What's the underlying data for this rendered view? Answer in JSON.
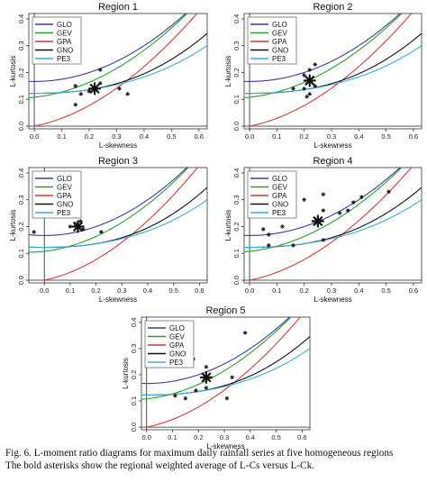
{
  "chart_data": [
    {
      "type": "scatter",
      "title": "Region 1",
      "xlabel": "L-skewness",
      "ylabel": "L-kurtosis",
      "xlim": [
        -0.02,
        0.63
      ],
      "ylim": [
        -0.01,
        0.42
      ],
      "xticks": [
        0.0,
        0.1,
        0.2,
        0.3,
        0.4,
        0.5,
        0.6
      ],
      "yticks": [
        0.0,
        0.1,
        0.2,
        0.3,
        0.4
      ],
      "xtick_labels": [
        "0.0",
        "0.1",
        "0.2",
        "0.3",
        "0.4",
        "0.5",
        "0.6"
      ],
      "ytick_labels": [
        "0.0",
        "0.1",
        "0.2",
        "0.3",
        "0.4"
      ],
      "legend": [
        "GLO",
        "GEV",
        "GPA",
        "GNO",
        "PE3"
      ],
      "legend_position": "top-left",
      "points": [
        [
          0.15,
          0.15
        ],
        [
          0.17,
          0.12
        ],
        [
          0.24,
          0.21
        ],
        [
          0.24,
          0.16
        ],
        [
          0.31,
          0.14
        ],
        [
          0.34,
          0.12
        ],
        [
          0.15,
          0.08
        ],
        [
          0.2,
          0.13
        ]
      ],
      "regional_average": [
        0.22,
        0.14
      ]
    },
    {
      "type": "scatter",
      "title": "Region 2",
      "xlabel": "L-skewness",
      "ylabel": "L-kurtosis",
      "xlim": [
        -0.02,
        0.63
      ],
      "ylim": [
        -0.01,
        0.42
      ],
      "xticks": [
        0.0,
        0.1,
        0.2,
        0.3,
        0.4,
        0.5,
        0.6
      ],
      "yticks": [
        0.0,
        0.1,
        0.2,
        0.3,
        0.4
      ],
      "xtick_labels": [
        "0.0",
        "0.1",
        "0.2",
        "0.3",
        "0.4",
        "0.5",
        "0.6"
      ],
      "ytick_labels": [
        "0.0",
        "0.1",
        "0.2",
        "0.3",
        "0.4"
      ],
      "legend": [
        "GLO",
        "GEV",
        "GPA",
        "GNO",
        "PE3"
      ],
      "legend_position": "top-left",
      "points": [
        [
          0.16,
          0.14
        ],
        [
          0.2,
          0.14
        ],
        [
          0.22,
          0.21
        ],
        [
          0.24,
          0.23
        ],
        [
          0.2,
          0.19
        ],
        [
          0.22,
          0.12
        ],
        [
          0.24,
          0.15
        ],
        [
          0.21,
          0.11
        ]
      ],
      "regional_average": [
        0.22,
        0.17
      ]
    },
    {
      "type": "scatter",
      "title": "Region 3",
      "xlabel": "L-skewness",
      "ylabel": "L-kurtosis",
      "xlim": [
        -0.06,
        0.63
      ],
      "ylim": [
        -0.01,
        0.42
      ],
      "xticks": [
        0.0,
        0.1,
        0.2,
        0.3,
        0.4,
        0.5,
        0.6
      ],
      "yticks": [
        0.0,
        0.1,
        0.2,
        0.3,
        0.4
      ],
      "xtick_labels": [
        "0.0",
        "0.1",
        "0.2",
        "0.3",
        "0.4",
        "0.5",
        "0.6"
      ],
      "ytick_labels": [
        "0.0",
        "0.1",
        "0.2",
        "0.3",
        "0.4"
      ],
      "legend": [
        "GLO",
        "GEV",
        "GPA",
        "GNO",
        "PE3"
      ],
      "legend_position": "top-left",
      "points": [
        [
          -0.04,
          0.18
        ],
        [
          0.1,
          0.2
        ],
        [
          0.12,
          0.21
        ],
        [
          0.14,
          0.22
        ],
        [
          0.15,
          0.19
        ],
        [
          0.22,
          0.18
        ]
      ],
      "regional_average": [
        0.13,
        0.2
      ]
    },
    {
      "type": "scatter",
      "title": "Region 4",
      "xlabel": "L-skewness",
      "ylabel": "L-kurtosis",
      "xlim": [
        -0.02,
        0.63
      ],
      "ylim": [
        -0.01,
        0.42
      ],
      "xticks": [
        0.0,
        0.1,
        0.2,
        0.3,
        0.4,
        0.5,
        0.6
      ],
      "yticks": [
        0.0,
        0.1,
        0.2,
        0.3,
        0.4
      ],
      "xtick_labels": [
        "0.0",
        "0.1",
        "0.2",
        "0.3",
        "0.4",
        "0.5",
        "0.6"
      ],
      "ytick_labels": [
        "0.0",
        "0.1",
        "0.2",
        "0.3",
        "0.4"
      ],
      "legend": [
        "GLO",
        "GEV",
        "GPA",
        "GNO",
        "PE3"
      ],
      "legend_position": "top-left",
      "points": [
        [
          0.05,
          0.19
        ],
        [
          0.07,
          0.17
        ],
        [
          0.07,
          0.13
        ],
        [
          0.12,
          0.2
        ],
        [
          0.16,
          0.13
        ],
        [
          0.2,
          0.3
        ],
        [
          0.27,
          0.32
        ],
        [
          0.27,
          0.26
        ],
        [
          0.27,
          0.15
        ],
        [
          0.33,
          0.25
        ],
        [
          0.36,
          0.26
        ],
        [
          0.38,
          0.29
        ],
        [
          0.41,
          0.31
        ],
        [
          0.51,
          0.33
        ]
      ],
      "regional_average": [
        0.25,
        0.22
      ]
    },
    {
      "type": "scatter",
      "title": "Region 5",
      "xlabel": "L-skewness",
      "ylabel": "L-kurtosis",
      "xlim": [
        -0.02,
        0.63
      ],
      "ylim": [
        -0.01,
        0.42
      ],
      "xticks": [
        0.0,
        0.1,
        0.2,
        0.3,
        0.4,
        0.5,
        0.6
      ],
      "yticks": [
        0.0,
        0.1,
        0.2,
        0.3,
        0.4
      ],
      "xtick_labels": [
        "0.0",
        "0.1",
        "0.2",
        "0.3",
        "0.4",
        "0.5",
        "0.6"
      ],
      "ytick_labels": [
        "0.0",
        "0.1",
        "0.2",
        "0.3",
        "0.4"
      ],
      "legend": [
        "GLO",
        "GEV",
        "GPA",
        "GNO",
        "PE3"
      ],
      "legend_position": "top-left",
      "points": [
        [
          0.11,
          0.12
        ],
        [
          0.15,
          0.11
        ],
        [
          0.19,
          0.14
        ],
        [
          0.23,
          0.15
        ],
        [
          0.23,
          0.23
        ],
        [
          0.18,
          0.26
        ],
        [
          0.31,
          0.11
        ],
        [
          0.33,
          0.19
        ],
        [
          0.38,
          0.36
        ]
      ],
      "regional_average": [
        0.23,
        0.19
      ]
    }
  ],
  "colors": {
    "GLO": "#3b3b9e",
    "GEV": "#2f9e2f",
    "GPA": "#d23a3a",
    "GNO": "#111111",
    "PE3": "#3aaed8"
  },
  "caption": {
    "line1": "Fig. 6. L-moment ratio diagrams for maximum daily rainfall series at five homogeneous regions",
    "line2": "The bold asterisks show the regional weighted average of L-Cs versus L-Ck."
  }
}
